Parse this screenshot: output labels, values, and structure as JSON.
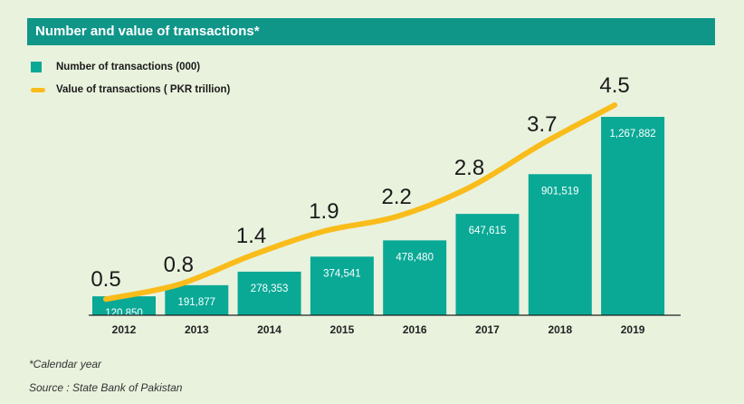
{
  "title": "Number and value of transactions*",
  "colors": {
    "bar": "#09a996",
    "line": "#f9bc1a",
    "title_bg": "#0f9689"
  },
  "legend": [
    {
      "label": "Number of transactions (000)",
      "type": "bar"
    },
    {
      "label": "Value of transactions ( PKR trillion)",
      "type": "line"
    }
  ],
  "footnote": "*Calendar year",
  "source": "Source : State Bank of Pakistan",
  "chart_data": {
    "type": "bar",
    "title": "Number and value of transactions*",
    "categories": [
      "2012",
      "2013",
      "2014",
      "2015",
      "2016",
      "2017",
      "2018",
      "2019"
    ],
    "series": [
      {
        "name": "Number of transactions (000)",
        "type": "bar",
        "values": [
          120850,
          191877,
          278353,
          374541,
          478480,
          647615,
          901519,
          1267882
        ],
        "labels": [
          "120,850",
          "191,877",
          "278,353",
          "374,541",
          "478,480",
          "647,615",
          "901,519",
          "1,267,882"
        ]
      },
      {
        "name": "Value of transactions ( PKR trillion)",
        "type": "line",
        "values": [
          0.5,
          0.8,
          1.4,
          1.9,
          2.2,
          2.8,
          3.7,
          4.5
        ],
        "labels": [
          "0.5",
          "0.8",
          "1.4",
          "1.9",
          "2.2",
          "2.8",
          "3.7",
          "4.5"
        ]
      }
    ],
    "grid": false,
    "legend_position": "top-left"
  }
}
